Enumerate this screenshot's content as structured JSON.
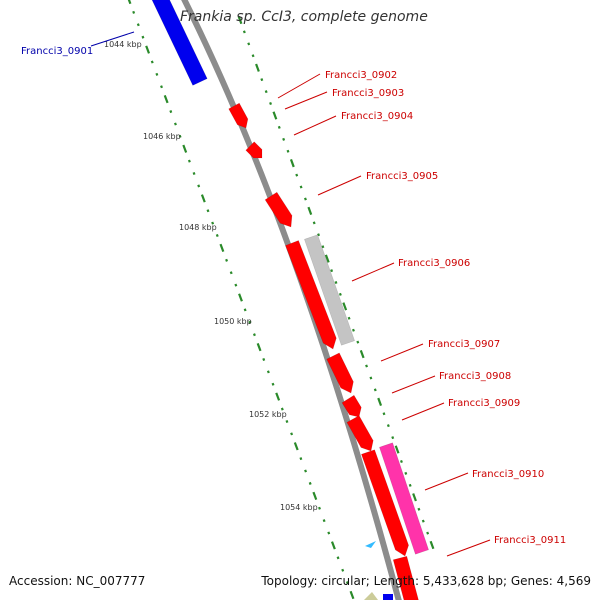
{
  "title": "Frankia sp. CcI3, complete genome",
  "footer": {
    "accession": "Accession: NC_007777",
    "stats": "Topology: circular; Length: 5,433,628 bp; Genes: 4,569"
  },
  "colors": {
    "backbone": "#8c8c8c",
    "tick": "#2a8a2a",
    "cds_forward": "#ff0000",
    "cds_reverse": "#0000ee",
    "cds_gray": "#c4c4c4",
    "cds_magenta": "#ff33aa",
    "label_forward": "#cc0000",
    "label_reverse": "#0000aa",
    "small_feature": "#33bbff",
    "small_feature_2": "#cccc99"
  },
  "scale": {
    "unit": "kbp",
    "labels": [
      "1044 kbp",
      "1046 kbp",
      "1048 kbp",
      "1050 kbp",
      "1052 kbp",
      "1054 kbp"
    ]
  },
  "genes": [
    {
      "name": "Francci3_0901",
      "strand": "reverse"
    },
    {
      "name": "Francci3_0902",
      "strand": "forward"
    },
    {
      "name": "Francci3_0903",
      "strand": "forward"
    },
    {
      "name": "Francci3_0904",
      "strand": "forward"
    },
    {
      "name": "Francci3_0905",
      "strand": "forward"
    },
    {
      "name": "Francci3_0906",
      "strand": "forward"
    },
    {
      "name": "Francci3_0907",
      "strand": "forward"
    },
    {
      "name": "Francci3_0908",
      "strand": "forward"
    },
    {
      "name": "Francci3_0909",
      "strand": "forward"
    },
    {
      "name": "Francci3_0910",
      "strand": "forward"
    },
    {
      "name": "Francci3_0911",
      "strand": "forward"
    }
  ]
}
